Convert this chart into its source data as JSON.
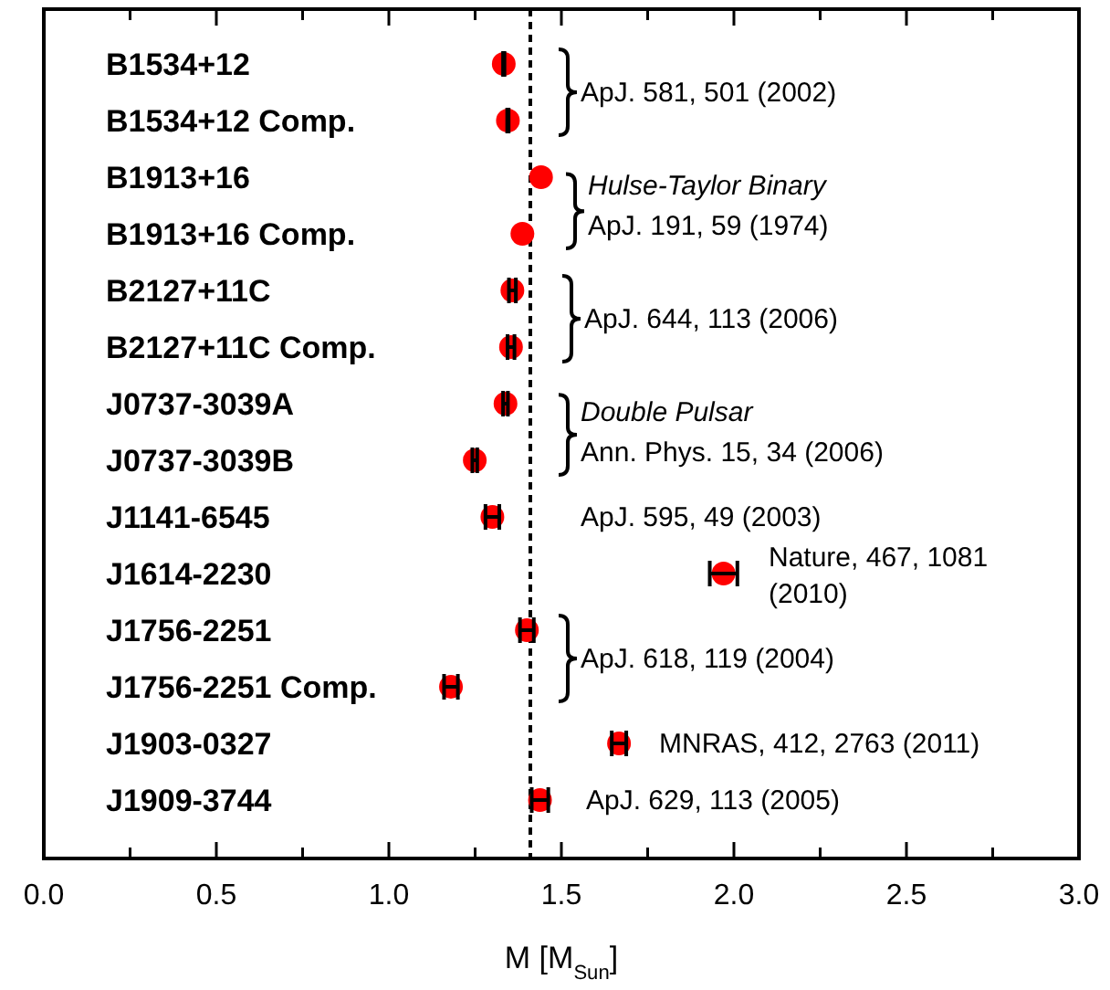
{
  "chart_data": {
    "type": "scatter",
    "orientation": "horizontal",
    "xlabel": "M [M$_{Sun}$]",
    "categories": [
      "B1534+12",
      "B1534+12 Comp.",
      "B1913+16",
      "B1913+16 Comp.",
      "B2127+11C",
      "B2127+11C Comp.",
      "J0737-3039A",
      "J0737-3039B",
      "J1141-6545",
      "J1614-2230",
      "J1756-2251",
      "J1756-2251 Comp.",
      "J1903-0327",
      "J1909-3744"
    ],
    "series": [
      {
        "color": "#ff0000",
        "values": [
          1.333,
          1.345,
          1.441,
          1.387,
          1.358,
          1.354,
          1.338,
          1.249,
          1.3,
          1.97,
          1.4,
          1.18,
          1.667,
          1.438
        ],
        "errors": [
          0.002,
          0.002,
          null,
          null,
          0.01,
          0.01,
          0.007,
          0.007,
          0.02,
          0.04,
          0.02,
          0.02,
          0.021,
          0.024
        ]
      }
    ],
    "marker": "circle",
    "xlim": [
      0,
      3
    ],
    "xticks": [
      {
        "value": 0,
        "label": "0.0"
      },
      {
        "value": 0.25,
        "label": null
      },
      {
        "value": 0.5,
        "label": "0.5"
      },
      {
        "value": 0.75,
        "label": null
      },
      {
        "value": 1,
        "label": "1.0"
      },
      {
        "value": 1.25,
        "label": null
      },
      {
        "value": 1.5,
        "label": "1.5"
      },
      {
        "value": 1.75,
        "label": null
      },
      {
        "value": 2,
        "label": "2.0"
      },
      {
        "value": 2.25,
        "label": null
      },
      {
        "value": 2.5,
        "label": "2.5"
      },
      {
        "value": 2.75,
        "label": null
      },
      {
        "value": 3,
        "label": "3.0"
      }
    ],
    "ref_lines": [
      {
        "axis": "x",
        "value": 1.41,
        "line_style": "dashed",
        "color": "#000000"
      }
    ],
    "annotations": [
      "ApJ. 581, 501 (2002)",
      "Hulse-Taylor Binary",
      "ApJ. 191, 59 (1974)",
      "ApJ. 644, 113 (2006)",
      "Double Pulsar",
      "Ann. Phys. 15, 34 (2006)",
      "ApJ. 595, 49 (2003)",
      "Nature, 467, 1081 (2010)",
      "ApJ. 618, 119 (2004)",
      "MNRAS, 412, 2763 (2011)",
      "ApJ. 629, 113 (2005)"
    ]
  }
}
